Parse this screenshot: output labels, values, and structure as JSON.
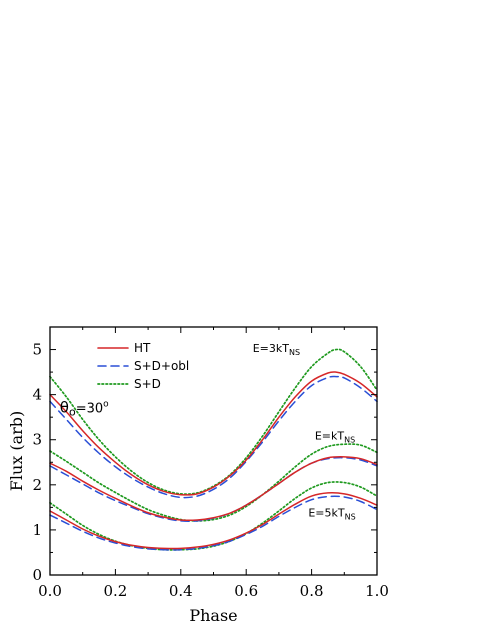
{
  "chart_data": {
    "type": "line",
    "xlabel": "Phase",
    "ylabel": "Flux (arb)",
    "xlim": [
      0.0,
      1.0
    ],
    "ylim": [
      0,
      5.5
    ],
    "xticks": [
      0.0,
      0.2,
      0.4,
      0.6,
      0.8,
      1.0
    ],
    "xticklabels": [
      "0.0",
      "0.2",
      "0.4",
      "0.6",
      "0.8",
      "1.0"
    ],
    "yticks": [
      0,
      1,
      2,
      3,
      4,
      5
    ],
    "yticklabels": [
      "0",
      "1",
      "2",
      "3",
      "4",
      "5"
    ],
    "grid": false,
    "legend": {
      "placement": "top-left",
      "entries": [
        {
          "label": "HT",
          "color": "#d62728",
          "style": "solid"
        },
        {
          "label": "S+D+obl",
          "color": "#2a4fd6",
          "style": "dashed"
        },
        {
          "label": "S+D",
          "color": "#1f9a1f",
          "style": "dotted"
        }
      ]
    },
    "annotations": [
      {
        "base": "θ",
        "sub": "o",
        "rest": "=30",
        "sup": "o",
        "x": 0.03,
        "y": 3.6
      },
      {
        "base": "E=3kT",
        "sub": "NS",
        "x": 0.62,
        "y": 4.95
      },
      {
        "base": "E=kT",
        "sub": "NS",
        "x": 0.81,
        "y": 3.0
      },
      {
        "base": "E=5kT",
        "sub": "NS",
        "x": 0.79,
        "y": 1.3
      }
    ],
    "groups": [
      {
        "name": "E=3kT_NS",
        "x": [
          0.0,
          0.05,
          0.1,
          0.15,
          0.2,
          0.25,
          0.3,
          0.35,
          0.4,
          0.45,
          0.5,
          0.55,
          0.6,
          0.65,
          0.7,
          0.75,
          0.8,
          0.85,
          0.875,
          0.9,
          0.95,
          1.0
        ],
        "series": [
          {
            "legend": "HT",
            "values": [
              4.0,
              3.62,
              3.2,
              2.82,
              2.5,
              2.22,
              2.0,
              1.85,
              1.78,
              1.8,
              1.95,
              2.2,
              2.55,
              3.0,
              3.5,
              3.95,
              4.3,
              4.48,
              4.5,
              4.45,
              4.25,
              3.95
            ]
          },
          {
            "legend": "S+D+obl",
            "values": [
              3.85,
              3.45,
              3.05,
              2.7,
              2.4,
              2.15,
              1.95,
              1.8,
              1.72,
              1.75,
              1.9,
              2.15,
              2.52,
              2.95,
              3.42,
              3.85,
              4.2,
              4.38,
              4.4,
              4.37,
              4.15,
              3.85
            ]
          },
          {
            "legend": "S+D",
            "values": [
              4.4,
              3.95,
              3.45,
              3.0,
              2.62,
              2.3,
              2.05,
              1.88,
              1.8,
              1.82,
              1.97,
              2.22,
              2.6,
              3.08,
              3.62,
              4.15,
              4.62,
              4.92,
              5.0,
              4.95,
              4.62,
              4.1
            ]
          }
        ]
      },
      {
        "name": "E=kT_NS",
        "x": [
          0.0,
          0.05,
          0.1,
          0.15,
          0.2,
          0.25,
          0.3,
          0.35,
          0.4,
          0.45,
          0.5,
          0.55,
          0.6,
          0.65,
          0.7,
          0.75,
          0.8,
          0.85,
          0.9,
          0.95,
          1.0
        ],
        "series": [
          {
            "legend": "HT",
            "values": [
              2.48,
              2.3,
              2.08,
              1.88,
              1.7,
              1.53,
              1.38,
              1.28,
              1.22,
              1.22,
              1.27,
              1.37,
              1.55,
              1.78,
              2.03,
              2.28,
              2.48,
              2.6,
              2.62,
              2.58,
              2.45
            ]
          },
          {
            "legend": "S+D+obl",
            "values": [
              2.42,
              2.22,
              2.02,
              1.82,
              1.65,
              1.5,
              1.36,
              1.26,
              1.2,
              1.2,
              1.26,
              1.37,
              1.55,
              1.78,
              2.03,
              2.28,
              2.48,
              2.58,
              2.6,
              2.55,
              2.42
            ]
          },
          {
            "legend": "S+D",
            "values": [
              2.75,
              2.52,
              2.28,
              2.04,
              1.83,
              1.63,
              1.45,
              1.32,
              1.23,
              1.2,
              1.23,
              1.33,
              1.52,
              1.78,
              2.08,
              2.4,
              2.68,
              2.85,
              2.9,
              2.88,
              2.72
            ]
          }
        ]
      },
      {
        "name": "E=5kT_NS",
        "x": [
          0.0,
          0.05,
          0.1,
          0.15,
          0.2,
          0.25,
          0.3,
          0.35,
          0.4,
          0.45,
          0.5,
          0.55,
          0.6,
          0.65,
          0.7,
          0.75,
          0.8,
          0.85,
          0.9,
          0.95,
          1.0
        ],
        "series": [
          {
            "legend": "HT",
            "values": [
              1.42,
              1.22,
              1.02,
              0.86,
              0.74,
              0.66,
              0.61,
              0.59,
              0.59,
              0.62,
              0.68,
              0.78,
              0.93,
              1.12,
              1.35,
              1.57,
              1.75,
              1.82,
              1.8,
              1.7,
              1.55
            ]
          },
          {
            "legend": "S+D+obl",
            "values": [
              1.33,
              1.15,
              0.97,
              0.82,
              0.71,
              0.63,
              0.58,
              0.56,
              0.56,
              0.59,
              0.65,
              0.75,
              0.9,
              1.08,
              1.3,
              1.5,
              1.67,
              1.74,
              1.73,
              1.63,
              1.45
            ]
          },
          {
            "legend": "S+D",
            "values": [
              1.6,
              1.35,
              1.1,
              0.9,
              0.75,
              0.65,
              0.59,
              0.56,
              0.56,
              0.58,
              0.64,
              0.75,
              0.92,
              1.15,
              1.42,
              1.7,
              1.93,
              2.05,
              2.05,
              1.95,
              1.75
            ]
          }
        ]
      }
    ]
  }
}
